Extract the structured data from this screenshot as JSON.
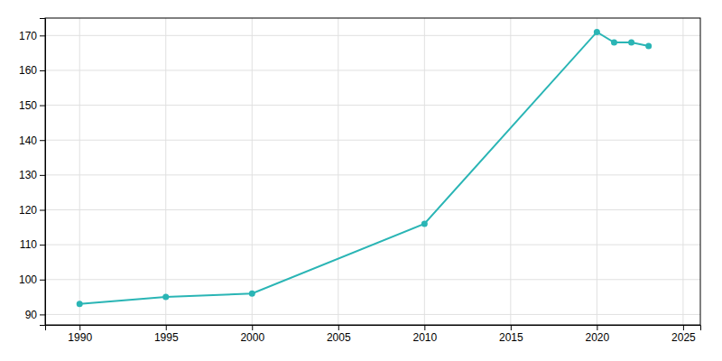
{
  "chart_data": {
    "type": "line",
    "x": [
      1990,
      1995,
      2000,
      2010,
      2020,
      2021,
      2022,
      2023
    ],
    "values": [
      93,
      95,
      96,
      116,
      171,
      168,
      168,
      167
    ],
    "color": "#2ab5b5",
    "marker": "circle",
    "xlim": [
      1988,
      2026
    ],
    "ylim": [
      87,
      175
    ],
    "xticks": [
      1990,
      1995,
      2000,
      2005,
      2010,
      2015,
      2020,
      2025
    ],
    "yticks": [
      90,
      100,
      110,
      120,
      130,
      140,
      150,
      160,
      170
    ],
    "grid": true
  }
}
